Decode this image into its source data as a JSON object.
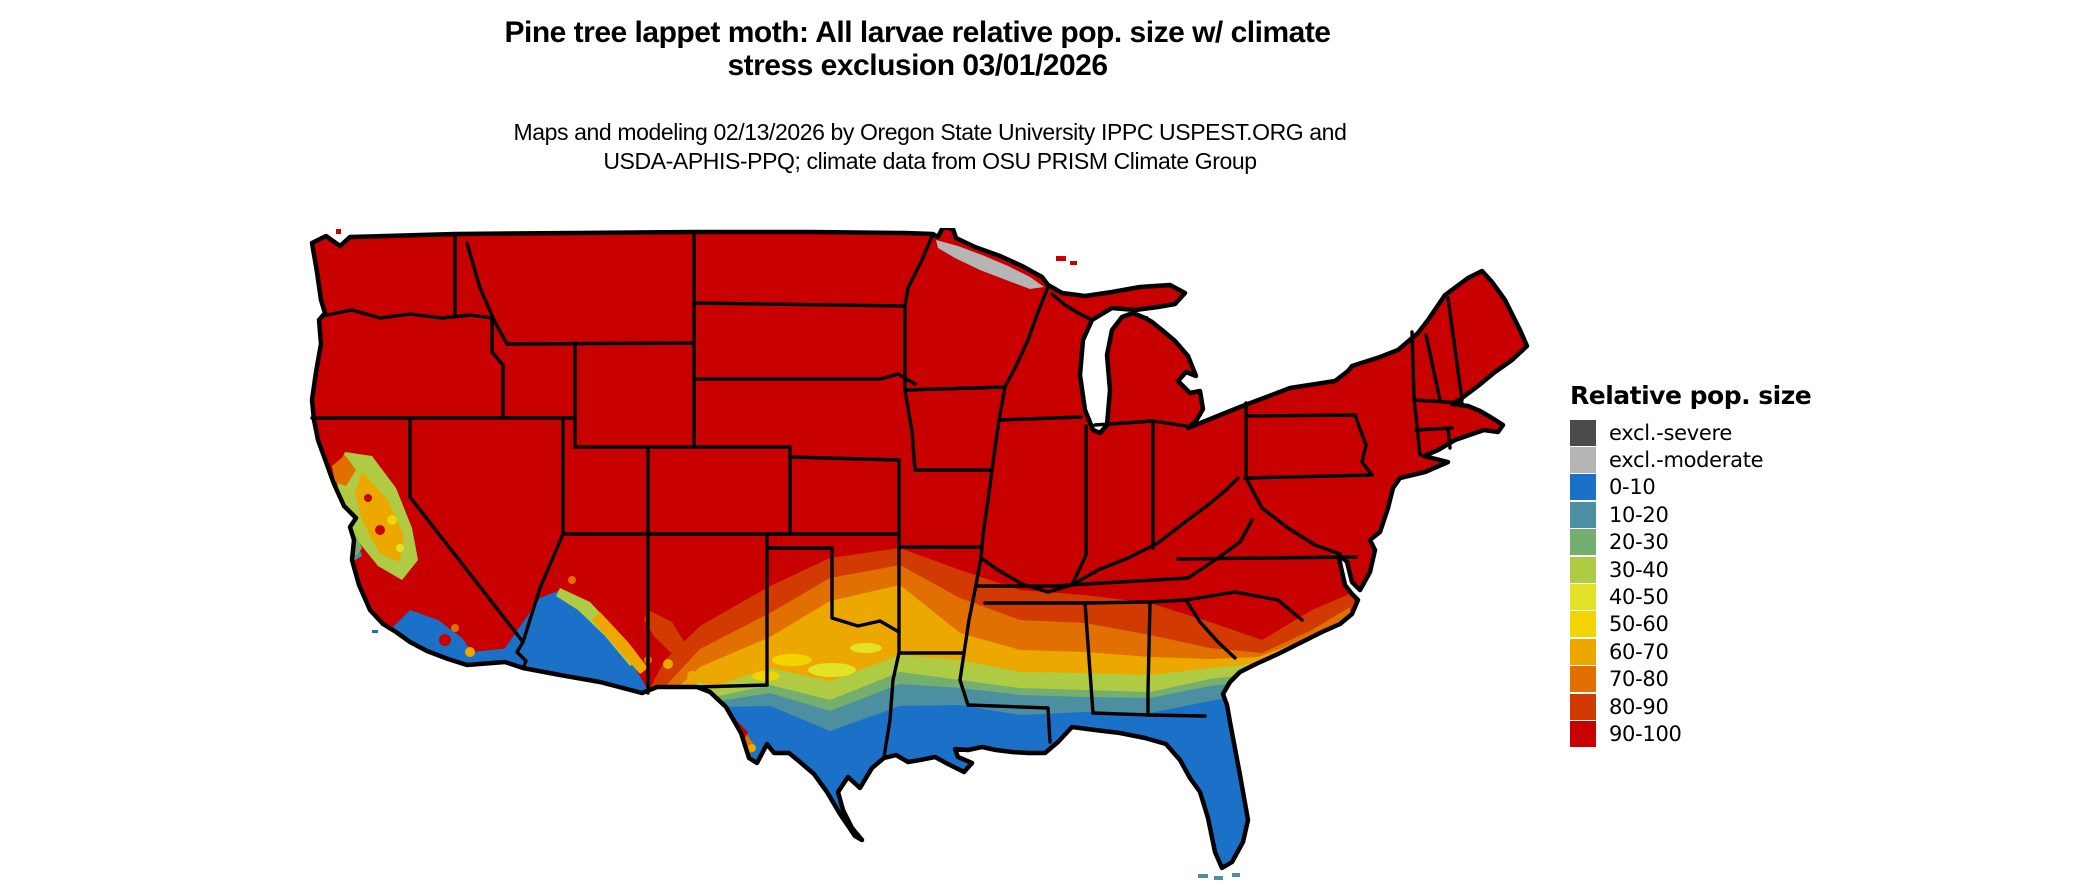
{
  "title": {
    "line1": "Pine tree lappet moth: All larvae relative pop. size w/ climate",
    "line2": "stress exclusion 03/01/2026"
  },
  "subtitle": {
    "line1": "Maps and modeling 02/13/2026 by Oregon State University IPPC USPEST.ORG and",
    "line2": "USDA-APHIS-PPQ; climate data from OSU PRISM Climate Group"
  },
  "legend": {
    "title": "Relative pop. size",
    "items": [
      {
        "label": "excl.-severe",
        "color": "#4B4B4B"
      },
      {
        "label": "excl.-moderate",
        "color": "#B5B5B5"
      },
      {
        "label": "0-10",
        "color": "#1B71C8"
      },
      {
        "label": "10-20",
        "color": "#4B8FA0"
      },
      {
        "label": "20-30",
        "color": "#74AF70"
      },
      {
        "label": "30-40",
        "color": "#AECB43"
      },
      {
        "label": "40-50",
        "color": "#E3E226"
      },
      {
        "label": "50-60",
        "color": "#F3D403"
      },
      {
        "label": "60-70",
        "color": "#EDA800"
      },
      {
        "label": "70-80",
        "color": "#E17000"
      },
      {
        "label": "80-90",
        "color": "#D13A00"
      },
      {
        "label": "90-100",
        "color": "#C80000"
      }
    ]
  },
  "map": {
    "type": "choropleth-raster",
    "region": "Continental United States",
    "border_color": "#000000"
  }
}
